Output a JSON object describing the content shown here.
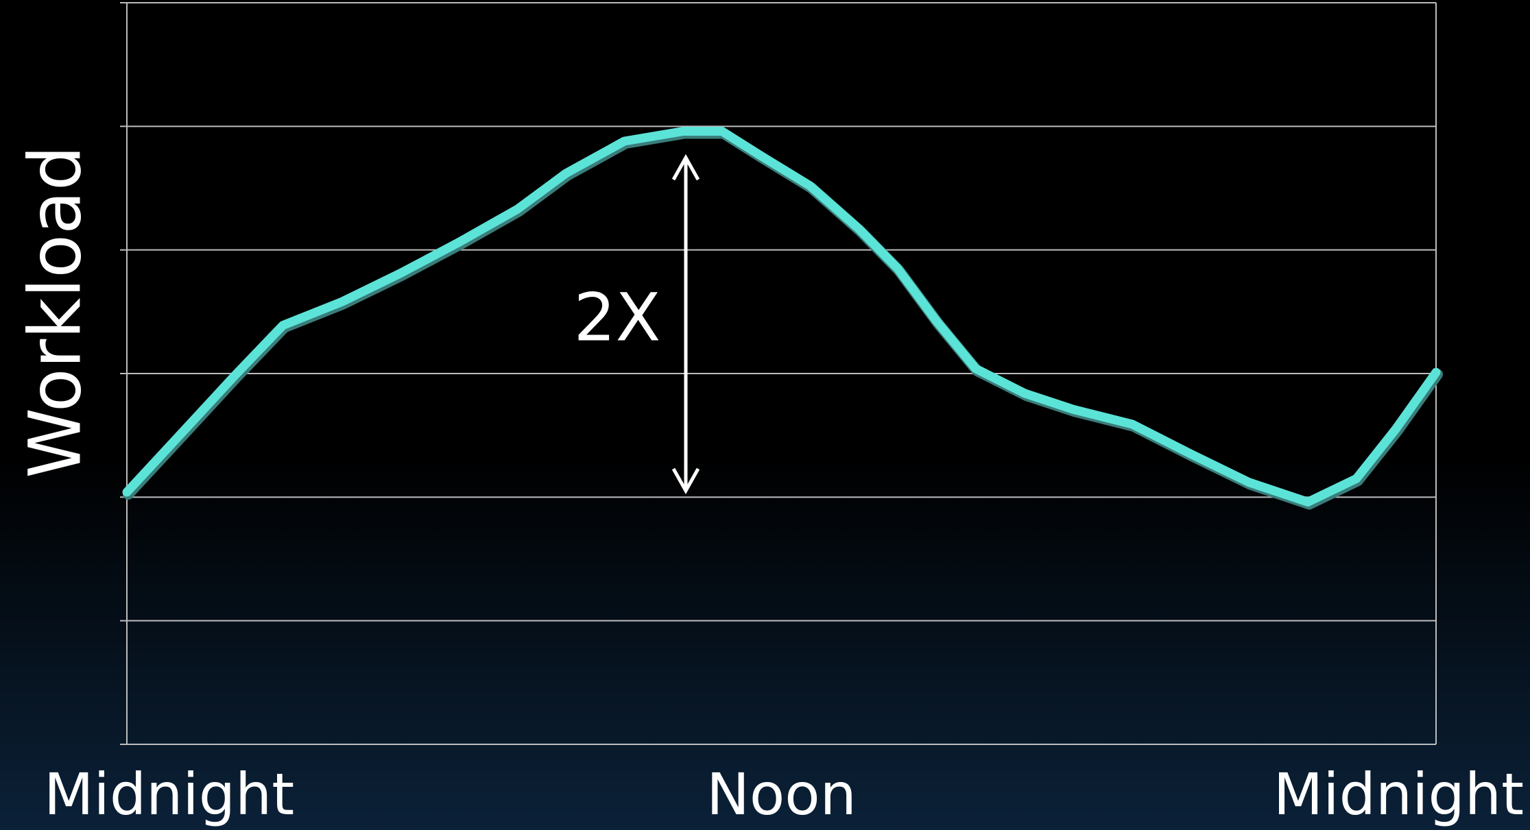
{
  "chart_data": {
    "type": "line",
    "y_label": "Workload",
    "annotation": "2X",
    "x": [
      0,
      1.07,
      1.97,
      2.86,
      3.94,
      5.01,
      6.08,
      7.16,
      8.05,
      9.12,
      10.2,
      10.91,
      11.63,
      12.52,
      13.42,
      14.13,
      14.85,
      15.56,
      16.46,
      17.35,
      18.43,
      19.5,
      20.57,
      21.65,
      22.54,
      23.26,
      24
    ],
    "values": [
      2.04,
      2.55,
      2.98,
      3.39,
      3.58,
      3.81,
      4.06,
      4.33,
      4.62,
      4.88,
      4.96,
      4.96,
      4.76,
      4.52,
      4.17,
      3.85,
      3.42,
      3.04,
      2.84,
      2.71,
      2.59,
      2.35,
      2.12,
      1.96,
      2.15,
      2.55,
      3.01
    ],
    "color": "#5ce3d8",
    "xlim": [
      0,
      24
    ],
    "xticks": [
      {
        "value": 0,
        "label": "Midnight"
      },
      {
        "value": 12,
        "label": "Noon"
      },
      {
        "value": 24,
        "label": "Midnight"
      }
    ],
    "ylim": [
      0,
      6
    ],
    "yticks": [
      0,
      1,
      2,
      3,
      4,
      5,
      6
    ],
    "grid": true
  }
}
